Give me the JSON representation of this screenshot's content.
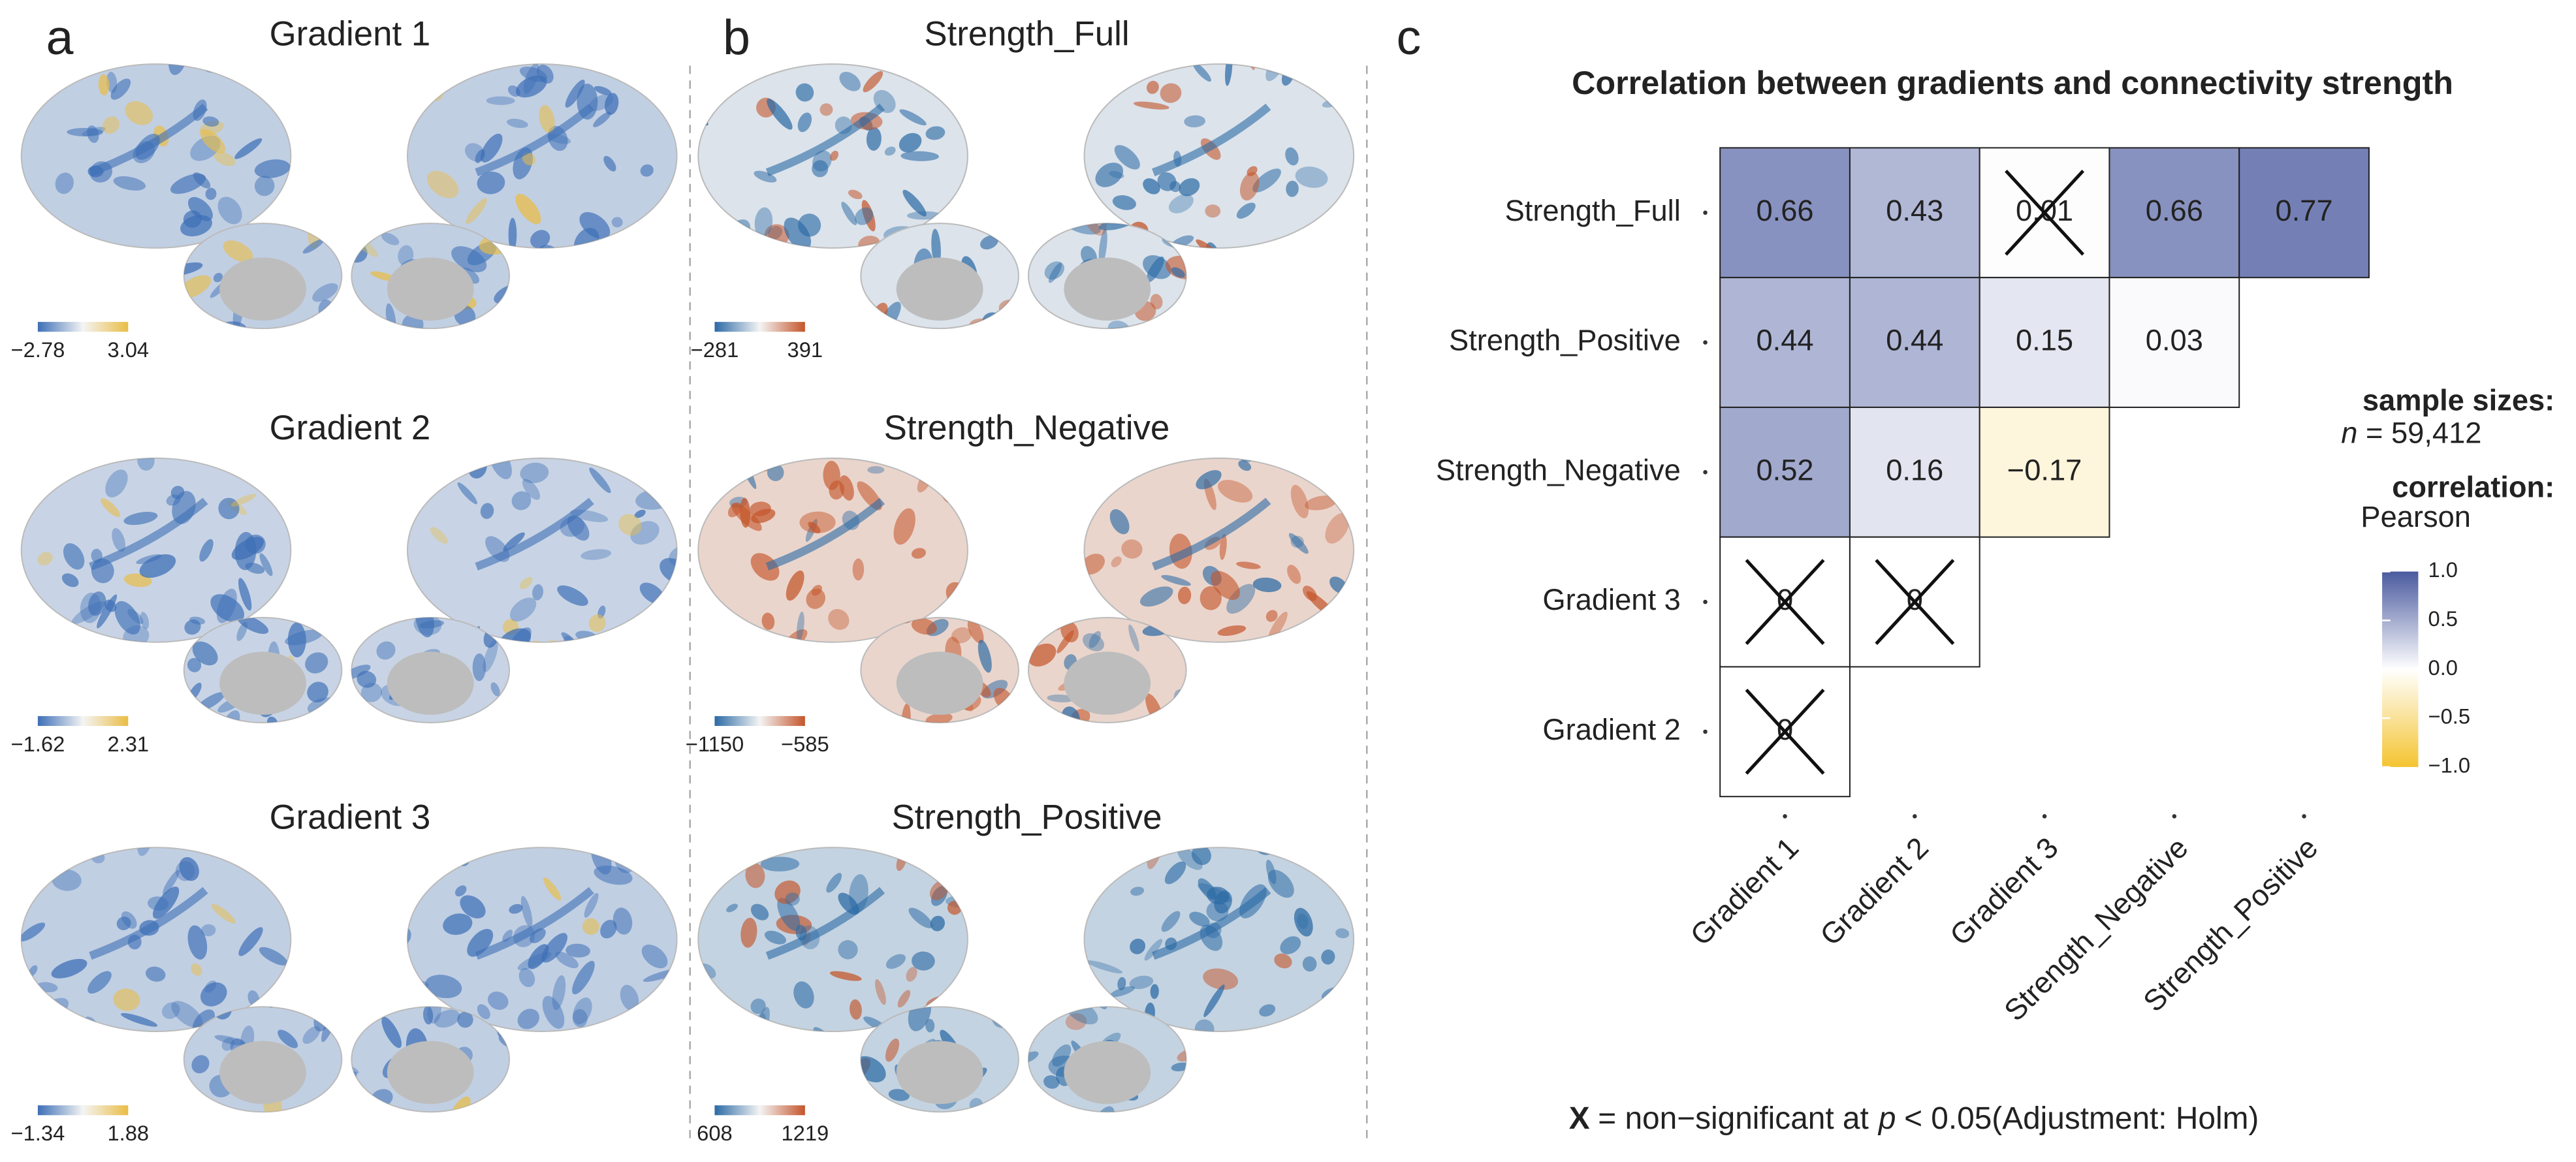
{
  "panels": [
    {
      "letter": "a",
      "maps": [
        {
          "title": "Gradient 1",
          "range": [
            {
              "value": -2.78,
              "label": "−2.78"
            },
            3.04
          ],
          "colormap": [
            "#3d6fb6",
            "#f4f4f4",
            "#e9bd45"
          ]
        },
        {
          "title": "Gradient 2",
          "range": [
            {
              "value": -1.62,
              "label": "−1.62"
            },
            2.31
          ],
          "colormap": [
            "#3d6fb6",
            "#f4f4f4",
            "#e9bd45"
          ]
        },
        {
          "title": "Gradient 3",
          "range": [
            {
              "value": -1.34,
              "label": "−1.34"
            },
            1.88
          ],
          "colormap": [
            "#3d6fb6",
            "#f4f4f4",
            "#e9bd45"
          ]
        }
      ]
    },
    {
      "letter": "b",
      "maps": [
        {
          "title": "Strength_Full",
          "range": [
            {
              "value": -281,
              "label": "−281"
            },
            391
          ],
          "colormap": [
            "#2b6aa5",
            "#f4f4f4",
            "#c4552a"
          ]
        },
        {
          "title": "Strength_Negative",
          "range": [
            {
              "value": -1150,
              "label": "−1150"
            },
            {
              "value": -585,
              "label": "−585"
            }
          ],
          "colormap": [
            "#2b6aa5",
            "#f4f4f4",
            "#c4552a"
          ]
        },
        {
          "title": "Strength_Positive",
          "range": [
            608,
            1219
          ],
          "colormap": [
            "#2b6aa5",
            "#f4f4f4",
            "#c4552a"
          ]
        }
      ]
    }
  ],
  "chart_data": {
    "type": "heatmap",
    "letter": "c",
    "title": "Correlation between gradients and connectivity strength",
    "rows": [
      "Strength_Full",
      "Strength_Positive",
      "Strength_Negative",
      "Gradient 3",
      "Gradient 2"
    ],
    "columns": [
      "Gradient 1",
      "Gradient 2",
      "Gradient 3",
      "Strength_Negative",
      "Strength_Positive"
    ],
    "values": [
      [
        0.66,
        0.43,
        0.01,
        0.66,
        0.77
      ],
      [
        0.44,
        0.44,
        0.15,
        0.03,
        null
      ],
      [
        0.52,
        0.16,
        -0.17,
        null,
        null
      ],
      [
        0,
        0,
        null,
        null,
        null
      ],
      [
        0,
        null,
        null,
        null,
        null
      ]
    ],
    "value_labels": [
      [
        "0.66",
        "0.43",
        "0.01",
        "0.66",
        "0.77"
      ],
      [
        "0.44",
        "0.44",
        "0.15",
        "0.03",
        null
      ],
      [
        "0.52",
        "0.16",
        "−0.17",
        null,
        null
      ],
      [
        "0",
        "0",
        null,
        null,
        null
      ],
      [
        "0",
        null,
        null,
        null,
        null
      ]
    ],
    "nonsignificant": [
      [
        false,
        false,
        true,
        false,
        false
      ],
      [
        false,
        false,
        false,
        false,
        null
      ],
      [
        false,
        false,
        false,
        null,
        null
      ],
      [
        true,
        true,
        null,
        null,
        null
      ],
      [
        true,
        null,
        null,
        null,
        null
      ]
    ],
    "colors": {
      "low": "#f4c431",
      "mid": "#ffffff",
      "high": "#4a5a9f"
    },
    "legend": {
      "sample_title": "sample sizes:",
      "n_symbol": "n",
      "n_value": "= 59,412",
      "corr_title": "correlation:",
      "corr_method": "Pearson",
      "ylim": [
        -1,
        1
      ],
      "yticks": [
        {
          "value": 1,
          "label": "1.0"
        },
        {
          "value": 0.5,
          "label": "0.5"
        },
        {
          "value": 0,
          "label": "0.0"
        },
        {
          "value": -0.5,
          "label": "−0.5"
        },
        {
          "value": -1,
          "label": "−1.0"
        }
      ]
    },
    "note": {
      "symbol": "X",
      "text": "= non−significant at",
      "p": "p",
      "threshold": "< 0.05(Adjustment: Holm)"
    }
  }
}
